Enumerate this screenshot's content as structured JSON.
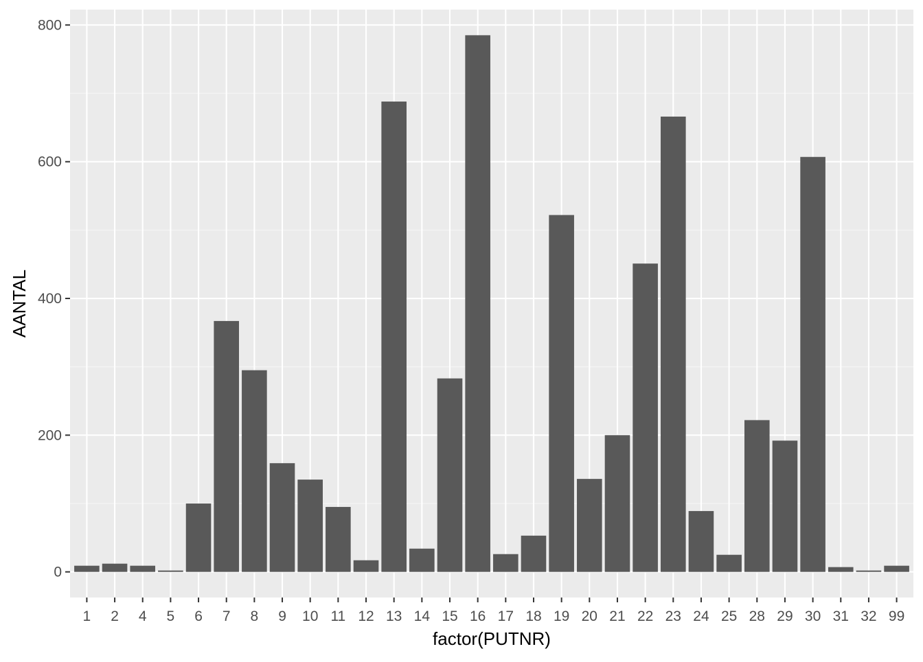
{
  "chart_data": {
    "type": "bar",
    "title": "",
    "xlabel": "factor(PUTNR)",
    "ylabel": "AANTAL",
    "categories": [
      "1",
      "2",
      "4",
      "5",
      "6",
      "7",
      "8",
      "9",
      "10",
      "11",
      "12",
      "13",
      "14",
      "15",
      "16",
      "17",
      "18",
      "19",
      "20",
      "21",
      "22",
      "23",
      "24",
      "25",
      "28",
      "29",
      "30",
      "31",
      "32",
      "99"
    ],
    "values": [
      9,
      12,
      9,
      2,
      100,
      367,
      295,
      159,
      135,
      95,
      17,
      688,
      34,
      283,
      785,
      26,
      53,
      522,
      136,
      200,
      451,
      666,
      89,
      25,
      222,
      192,
      607,
      7,
      2,
      9
    ],
    "ylim": [
      -37.5,
      822.5
    ],
    "yticks": [
      "0",
      "200",
      "400",
      "600",
      "800"
    ],
    "grid": true,
    "legend": "none",
    "colors": {
      "panel_background": "#EBEBEB",
      "grid_major": "#FFFFFF",
      "grid_minor": "#F5F5F5",
      "bar_fill": "#595959",
      "axis_text": "#4D4D4D",
      "axis_title": "#000000",
      "tick": "#333333"
    }
  }
}
